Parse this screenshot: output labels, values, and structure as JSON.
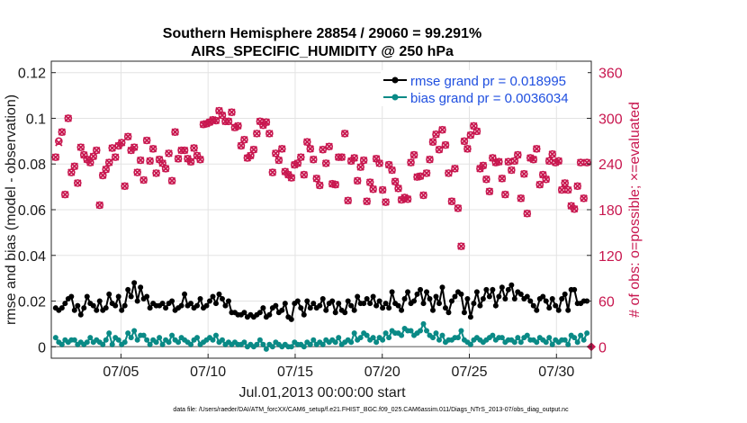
{
  "chart_data": {
    "type": "line",
    "title_line1": "Southern Hemisphere 28854 / 29060 = 99.291%",
    "title_line2": "AIRS_SPECIFIC_HUMIDITY @ 250 hPa",
    "xlabel": "Jul.01,2013 00:00:00 start",
    "ylabel_left": "rmse and bias (model - observation)",
    "ylabel_right": "# of obs: o=possible; ×=evaluated",
    "footnote": "data file: /Users/raeder/DAI/ATM_forcXX/CAM6_setup/f.e21.FHIST_BGC.f09_025.CAM6assim.011/Diags_NTrS_2013-07/obs_diag_output.nc",
    "x_range_days": [
      1,
      32
    ],
    "ylim_left": [
      -0.005,
      0.125
    ],
    "ylim_right": [
      -15,
      375
    ],
    "x_tick_labels": [
      "07/05",
      "07/10",
      "07/15",
      "07/20",
      "07/25",
      "07/30"
    ],
    "x_tick_days": [
      5,
      10,
      15,
      20,
      25,
      30
    ],
    "y_left_tick_labels": [
      "0",
      "0.02",
      "0.04",
      "0.06",
      "0.08",
      "0.1",
      "0.12"
    ],
    "y_left_ticks": [
      0,
      0.02,
      0.04,
      0.06,
      0.08,
      0.1,
      0.12
    ],
    "y_right_tick_labels": [
      "0",
      "60",
      "120",
      "180",
      "240",
      "300",
      "360"
    ],
    "y_right_ticks": [
      0,
      60,
      120,
      180,
      240,
      300,
      360
    ],
    "legend_position": "top-right",
    "series": [
      {
        "name": "rmse grand pr = 0.018995",
        "color": "#000000",
        "axis": "left",
        "marker": "circle",
        "values": [
          0.017,
          0.016,
          0.017,
          0.019,
          0.021,
          0.022,
          0.016,
          0.018,
          0.014,
          0.017,
          0.022,
          0.019,
          0.018,
          0.016,
          0.02,
          0.016,
          0.017,
          0.023,
          0.019,
          0.018,
          0.022,
          0.016,
          0.018,
          0.025,
          0.022,
          0.028,
          0.02,
          0.026,
          0.021,
          0.022,
          0.017,
          0.019,
          0.018,
          0.018,
          0.019,
          0.017,
          0.019,
          0.02,
          0.016,
          0.017,
          0.018,
          0.023,
          0.018,
          0.019,
          0.017,
          0.018,
          0.021,
          0.017,
          0.018,
          0.02,
          0.022,
          0.019,
          0.023,
          0.021,
          0.018,
          0.02,
          0.015,
          0.015,
          0.014,
          0.014,
          0.015,
          0.013,
          0.014,
          0.013,
          0.014,
          0.015,
          0.017,
          0.013,
          0.014,
          0.017,
          0.018,
          0.015,
          0.016,
          0.019,
          0.013,
          0.012,
          0.019,
          0.02,
          0.017,
          0.014,
          0.02,
          0.017,
          0.019,
          0.017,
          0.018,
          0.021,
          0.016,
          0.019,
          0.02,
          0.015,
          0.019,
          0.016,
          0.015,
          0.02,
          0.018,
          0.016,
          0.022,
          0.019,
          0.019,
          0.021,
          0.019,
          0.022,
          0.018,
          0.02,
          0.017,
          0.019,
          0.017,
          0.024,
          0.019,
          0.018,
          0.016,
          0.021,
          0.024,
          0.019,
          0.02,
          0.023,
          0.025,
          0.019,
          0.024,
          0.021,
          0.016,
          0.022,
          0.019,
          0.026,
          0.017,
          0.015,
          0.02,
          0.022,
          0.024,
          0.023,
          0.015,
          0.021,
          0.013,
          0.019,
          0.024,
          0.018,
          0.021,
          0.025,
          0.022,
          0.025,
          0.018,
          0.022,
          0.026,
          0.021,
          0.025,
          0.027,
          0.021,
          0.024,
          0.023,
          0.021,
          0.022,
          0.02,
          0.018,
          0.016,
          0.021,
          0.022,
          0.02,
          0.017,
          0.021,
          0.018,
          0.016,
          0.021,
          0.023,
          0.016,
          0.025,
          0.025,
          0.019,
          0.019,
          0.02,
          0.02
        ]
      },
      {
        "name": "bias grand pr = 0.0036034",
        "color": "#0a8a86",
        "axis": "left",
        "marker": "circle",
        "values": [
          0.004,
          0.002,
          0.001,
          0.003,
          0.002,
          0.003,
          0.003,
          0.001,
          0.002,
          0.001,
          0.002,
          0.004,
          0.002,
          0.003,
          0.002,
          0.001,
          0.003,
          0.006,
          0.001,
          0.004,
          0.003,
          0.001,
          0.002,
          0.006,
          0.004,
          0.007,
          0.003,
          0.005,
          0.005,
          0.003,
          0.001,
          0.003,
          0.002,
          0.004,
          0.001,
          0.003,
          0.002,
          0.005,
          0.003,
          0.002,
          0.004,
          0.003,
          0.002,
          0.001,
          0.003,
          0.004,
          0.001,
          0.002,
          0.003,
          0.004,
          0.003,
          0.005,
          0.002,
          0.003,
          0.001,
          0.002,
          0.001,
          0.002,
          0.001,
          0.001,
          0.002,
          0.0,
          0.001,
          0.0,
          0.001,
          0.003,
          0.001,
          -0.001,
          0.001,
          0.0,
          0.002,
          0.001,
          0.0,
          0.001,
          0.0,
          0.0,
          0.002,
          0.001,
          0.001,
          0.0,
          0.002,
          0.001,
          0.003,
          0.001,
          0.002,
          0.001,
          0.003,
          0.002,
          0.003,
          0.002,
          0.004,
          0.001,
          0.002,
          0.003,
          0.002,
          0.006,
          0.003,
          0.004,
          0.006,
          0.005,
          0.003,
          0.004,
          0.002,
          0.004,
          0.003,
          0.006,
          0.004,
          0.007,
          0.006,
          0.006,
          0.005,
          0.008,
          0.007,
          0.007,
          0.005,
          0.006,
          0.007,
          0.01,
          0.007,
          0.005,
          0.004,
          0.006,
          0.003,
          0.005,
          0.002,
          0.003,
          0.003,
          0.004,
          0.004,
          0.007,
          0.003,
          0.002,
          0.001,
          0.003,
          0.004,
          0.003,
          0.002,
          0.003,
          0.004,
          0.005,
          0.003,
          0.004,
          0.004,
          0.002,
          0.003,
          0.003,
          0.002,
          0.004,
          0.002,
          0.004,
          0.005,
          0.003,
          0.003,
          0.002,
          0.004,
          0.003,
          0.002,
          0.004,
          0.001,
          0.003,
          0.002,
          0.003,
          0.003,
          0.001,
          0.005,
          0.004,
          0.002,
          0.005,
          0.003,
          0.006
        ]
      },
      {
        "name": "# of obs possible",
        "color": "#c8174f",
        "axis": "right",
        "marker": "o",
        "values": [
          249,
          270,
          282,
          200,
          300,
          229,
          237,
          215,
          262,
          252,
          246,
          242,
          250,
          258,
          186,
          225,
          233,
          242,
          261,
          249,
          264,
          268,
          211,
          276,
          258,
          262,
          229,
          245,
          219,
          271,
          244,
          260,
          228,
          246,
          241,
          234,
          254,
          218,
          282,
          247,
          258,
          258,
          247,
          243,
          261,
          251,
          246,
          292,
          293,
          295,
          298,
          297,
          310,
          304,
          296,
          296,
          308,
          288,
          290,
          264,
          272,
          248,
          251,
          259,
          280,
          296,
          291,
          295,
          280,
          229,
          254,
          245,
          260,
          230,
          226,
          222,
          239,
          241,
          249,
          226,
          269,
          260,
          246,
          221,
          212,
          259,
          241,
          263,
          214,
          213,
          249,
          249,
          280,
          192,
          244,
          248,
          218,
          236,
          245,
          191,
          216,
          207,
          247,
          241,
          206,
          190,
          239,
          232,
          217,
          208,
          193,
          196,
          194,
          242,
          252,
          223,
          224,
          199,
          228,
          246,
          269,
          279,
          259,
          285,
          265,
          228,
          191,
          234,
          182,
          132,
          270,
          260,
          278,
          290,
          283,
          234,
          238,
          220,
          204,
          248,
          242,
          243,
          221,
          200,
          243,
          232,
          244,
          252,
          195,
          227,
          175,
          248,
          246,
          260,
          213,
          226,
          220,
          244,
          253,
          242,
          244,
          206,
          215,
          206,
          185,
          181,
          211,
          242,
          195,
          242
        ]
      },
      {
        "name": "# of obs evaluated",
        "color": "#c8174f",
        "axis": "right",
        "marker": "x",
        "values": [
          249,
          268,
          282,
          200,
          300,
          229,
          237,
          215,
          262,
          252,
          246,
          242,
          250,
          258,
          186,
          225,
          233,
          242,
          261,
          249,
          264,
          268,
          211,
          276,
          258,
          262,
          229,
          245,
          219,
          271,
          244,
          260,
          228,
          246,
          241,
          234,
          254,
          218,
          282,
          247,
          258,
          258,
          247,
          243,
          261,
          251,
          246,
          292,
          293,
          295,
          298,
          297,
          310,
          304,
          296,
          296,
          308,
          288,
          290,
          264,
          272,
          248,
          251,
          259,
          280,
          296,
          291,
          295,
          280,
          229,
          254,
          245,
          260,
          230,
          226,
          222,
          239,
          241,
          249,
          226,
          269,
          260,
          246,
          221,
          212,
          259,
          241,
          263,
          214,
          213,
          249,
          249,
          280,
          192,
          244,
          248,
          218,
          236,
          245,
          191,
          216,
          207,
          247,
          241,
          206,
          190,
          239,
          232,
          217,
          208,
          193,
          196,
          194,
          242,
          252,
          223,
          224,
          199,
          228,
          246,
          269,
          279,
          259,
          285,
          265,
          228,
          191,
          234,
          182,
          132,
          270,
          260,
          278,
          290,
          283,
          234,
          238,
          220,
          204,
          248,
          242,
          243,
          221,
          200,
          243,
          232,
          244,
          252,
          195,
          227,
          175,
          248,
          246,
          260,
          213,
          226,
          220,
          244,
          253,
          242,
          244,
          206,
          215,
          206,
          185,
          181,
          211,
          242,
          195,
          242
        ]
      }
    ],
    "end_marker_right_value": 0
  }
}
